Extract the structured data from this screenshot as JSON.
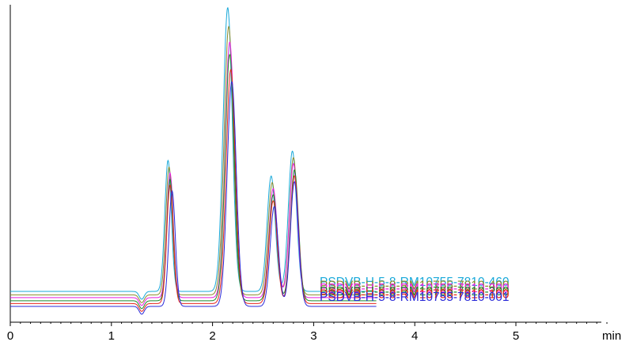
{
  "chart_data": {
    "type": "line",
    "title": "",
    "xlabel": "min",
    "ylabel": "",
    "xlim": [
      0,
      5.9
    ],
    "x_ticks": [
      0,
      1,
      2,
      3,
      4,
      5
    ],
    "x_tick_labels": [
      "0",
      "1",
      "2",
      "3",
      "4",
      "5"
    ],
    "grid": false,
    "legend": "right, labels beside trace ends",
    "stacked_offset": true,
    "series": [
      {
        "name": "PSDVB-H-5-8-RM10755-7810-460",
        "color": "#1aa9d9",
        "baseline": 0.48,
        "x_range": [
          0,
          3.62
        ],
        "peaks": [
          {
            "x": 1.56,
            "height": 4.2
          },
          {
            "x": 2.15,
            "height": 9.1
          },
          {
            "x": 2.58,
            "height": 3.7
          },
          {
            "x": 2.79,
            "height": 4.5
          }
        ]
      },
      {
        "name": "PSDVB-H-5-8-RM10755-7810-400",
        "color": "#8a8a2a",
        "baseline": 0.37,
        "x_range": [
          0,
          3.62
        ],
        "peaks": [
          {
            "x": 1.57,
            "height": 4.1
          },
          {
            "x": 2.16,
            "height": 8.6
          },
          {
            "x": 2.59,
            "height": 3.6
          },
          {
            "x": 2.8,
            "height": 4.4
          }
        ]
      },
      {
        "name": "PSDVB-H-5-8-RM10755-7810-300",
        "color": "#e81ee0",
        "baseline": 0.28,
        "x_range": [
          0,
          3.62
        ],
        "peaks": [
          {
            "x": 1.58,
            "height": 4.0
          },
          {
            "x": 2.17,
            "height": 8.2
          },
          {
            "x": 2.6,
            "height": 3.5
          },
          {
            "x": 2.8,
            "height": 4.3
          }
        ]
      },
      {
        "name": "PSDVB-H-5-8-RM10755-7810-200",
        "color": "#1c8a2c",
        "baseline": 0.18,
        "x_range": [
          0,
          3.62
        ],
        "peaks": [
          {
            "x": 1.58,
            "height": 3.9
          },
          {
            "x": 2.17,
            "height": 7.9
          },
          {
            "x": 2.6,
            "height": 3.4
          },
          {
            "x": 2.81,
            "height": 4.2
          }
        ]
      },
      {
        "name": "PSDVB-H-5-8-RM10755-7810-100",
        "color": "#e8251c",
        "baseline": 0.09,
        "x_range": [
          0,
          3.62
        ],
        "peaks": [
          {
            "x": 1.58,
            "height": 3.8
          },
          {
            "x": 2.18,
            "height": 7.5
          },
          {
            "x": 2.6,
            "height": 3.3
          },
          {
            "x": 2.81,
            "height": 4.1
          }
        ]
      },
      {
        "name": "PSDVB-H-5-8-RM10755-7810-001",
        "color": "#2a2ad9",
        "baseline": 0.0,
        "x_range": [
          0,
          3.62
        ],
        "peaks": [
          {
            "x": 1.6,
            "height": 3.7
          },
          {
            "x": 2.19,
            "height": 7.2
          },
          {
            "x": 2.61,
            "height": 3.2
          },
          {
            "x": 2.81,
            "height": 4.0
          }
        ]
      }
    ]
  }
}
